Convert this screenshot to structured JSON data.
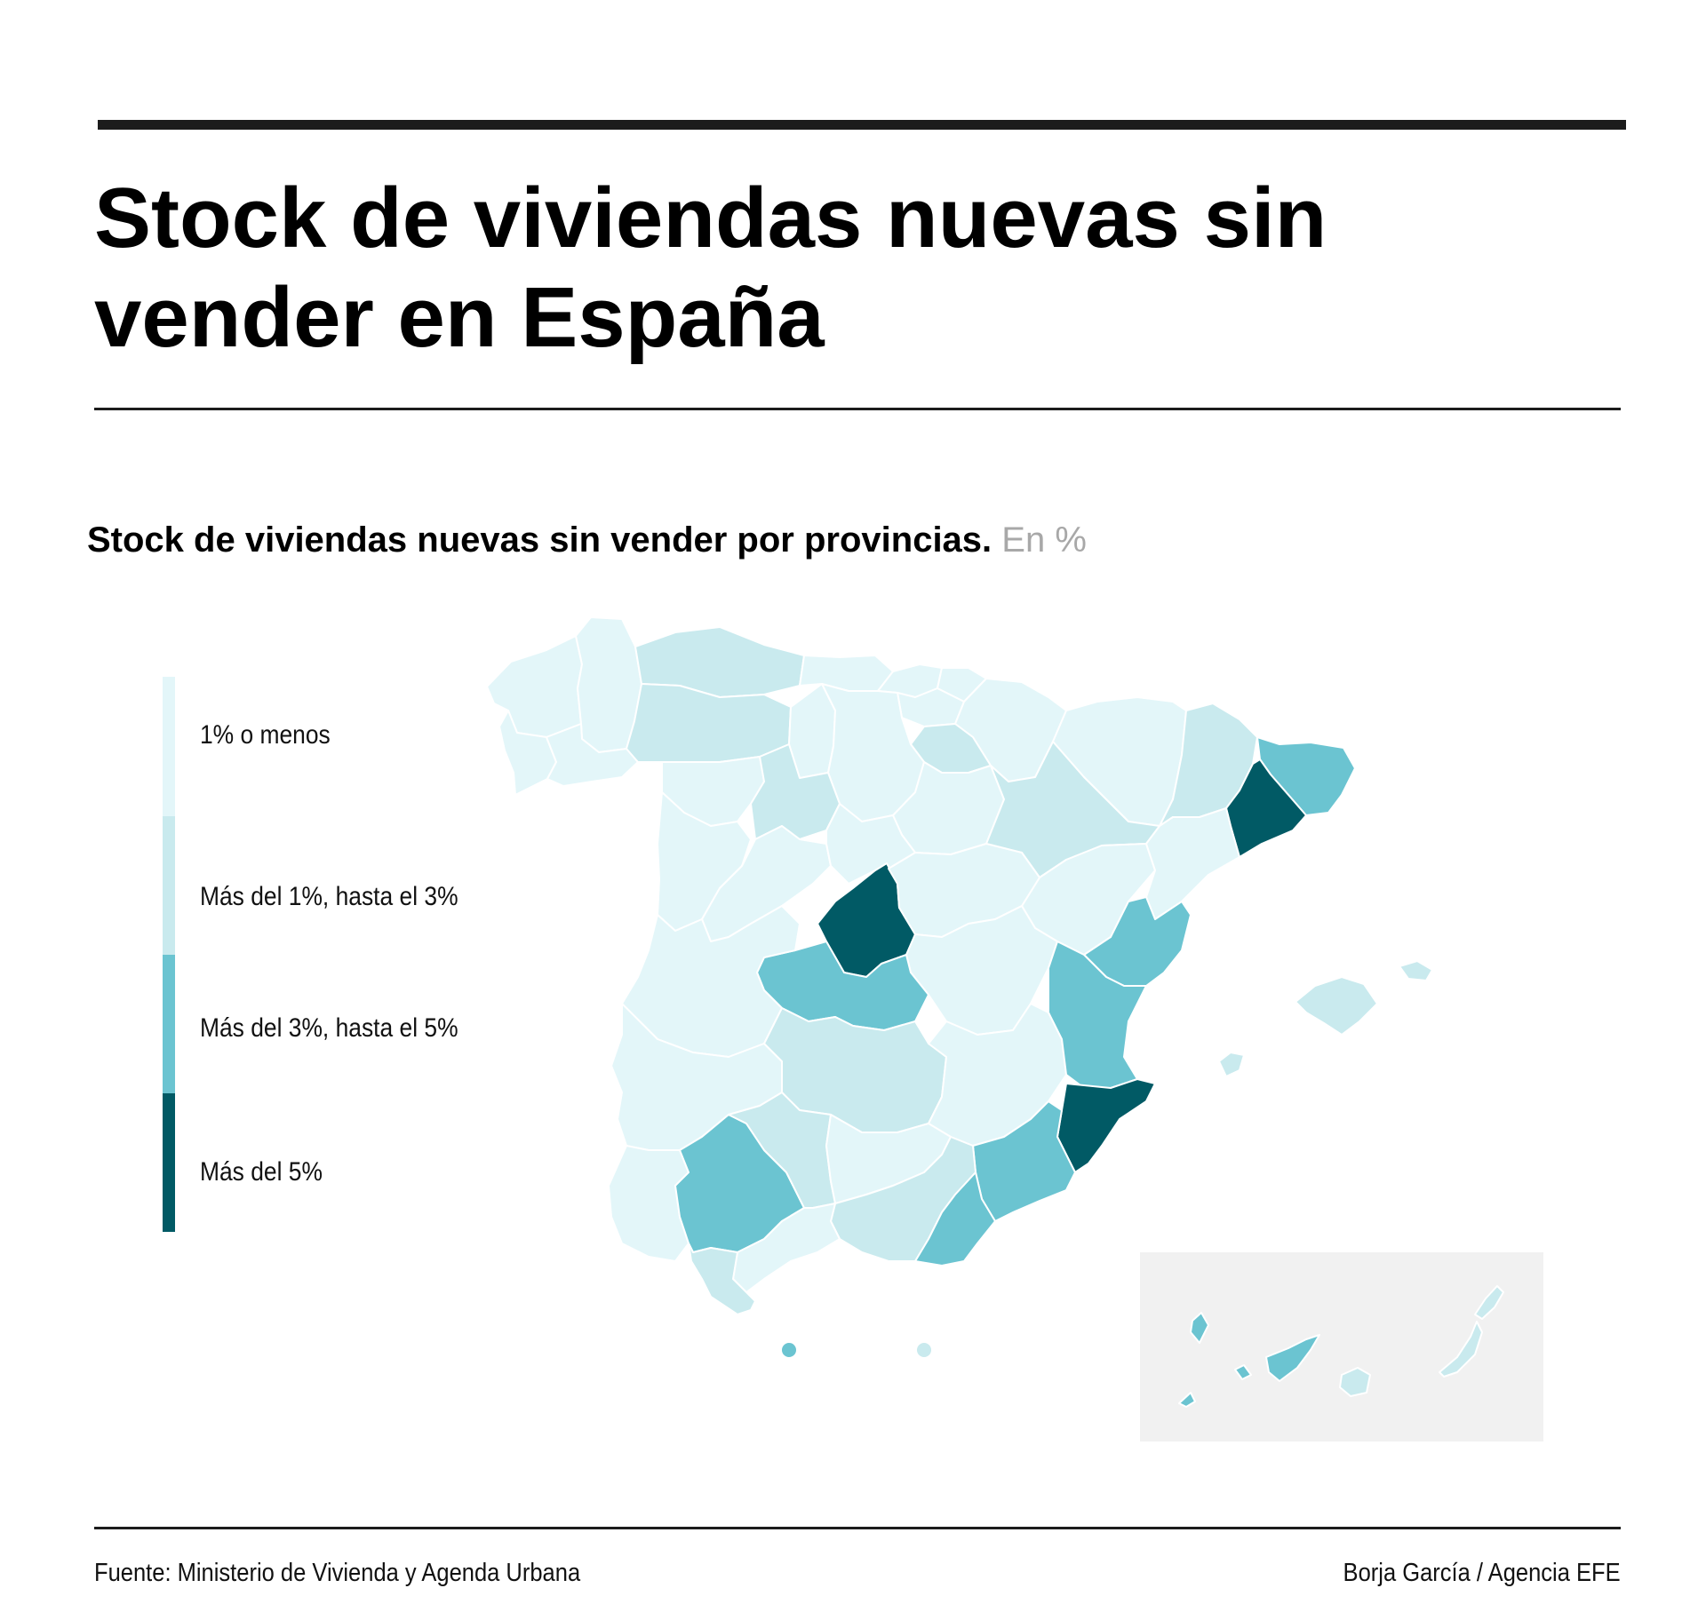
{
  "header": {
    "title": "Stock de viviendas nuevas sin vender en España"
  },
  "map": {
    "subtitle": "Stock de viviendas nuevas sin vender por provincias.",
    "unit": "En %",
    "colors": {
      "le1": "#e3f6f9",
      "1to3": "#c9eaee",
      "3to5": "#6bc4d1",
      "gt5": "#015a65",
      "canarias_inset_bg": "#f1f1f1",
      "border": "#ffffff"
    },
    "legend": [
      {
        "key": "le1",
        "label": "1% o menos"
      },
      {
        "key": "1to3",
        "label": "Más del 1%, hasta el 3%"
      },
      {
        "key": "3to5",
        "label": "Más del 3%, hasta el 5%"
      },
      {
        "key": "gt5",
        "label": "Más del 5%"
      }
    ],
    "regions": [
      {
        "name": "A Coruña",
        "cls": "le1"
      },
      {
        "name": "Lugo",
        "cls": "le1"
      },
      {
        "name": "Pontevedra",
        "cls": "le1"
      },
      {
        "name": "Ourense",
        "cls": "le1"
      },
      {
        "name": "Asturias",
        "cls": "1to3"
      },
      {
        "name": "Cantabria",
        "cls": "le1"
      },
      {
        "name": "Bizkaia",
        "cls": "le1"
      },
      {
        "name": "Gipuzkoa",
        "cls": "le1"
      },
      {
        "name": "Álava",
        "cls": "le1"
      },
      {
        "name": "Navarra",
        "cls": "le1"
      },
      {
        "name": "La Rioja",
        "cls": "1to3"
      },
      {
        "name": "León",
        "cls": "1to3"
      },
      {
        "name": "Palencia",
        "cls": "le1"
      },
      {
        "name": "Burgos",
        "cls": "le1"
      },
      {
        "name": "Zamora",
        "cls": "le1"
      },
      {
        "name": "Valladolid",
        "cls": "1to3"
      },
      {
        "name": "Soria",
        "cls": "le1"
      },
      {
        "name": "Salamanca",
        "cls": "le1"
      },
      {
        "name": "Ávila",
        "cls": "le1"
      },
      {
        "name": "Segovia",
        "cls": "le1"
      },
      {
        "name": "Huesca",
        "cls": "le1"
      },
      {
        "name": "Zaragoza",
        "cls": "1to3"
      },
      {
        "name": "Teruel",
        "cls": "le1"
      },
      {
        "name": "Lleida",
        "cls": "1to3"
      },
      {
        "name": "Girona",
        "cls": "3to5"
      },
      {
        "name": "Barcelona",
        "cls": "gt5"
      },
      {
        "name": "Tarragona",
        "cls": "le1"
      },
      {
        "name": "Madrid",
        "cls": "gt5"
      },
      {
        "name": "Guadalajara",
        "cls": "le1"
      },
      {
        "name": "Cuenca",
        "cls": "le1"
      },
      {
        "name": "Toledo",
        "cls": "3to5"
      },
      {
        "name": "Cáceres",
        "cls": "le1"
      },
      {
        "name": "Badajoz",
        "cls": "le1"
      },
      {
        "name": "Ciudad Real",
        "cls": "1to3"
      },
      {
        "name": "Albacete",
        "cls": "le1"
      },
      {
        "name": "Castellón",
        "cls": "3to5"
      },
      {
        "name": "Valencia",
        "cls": "3to5"
      },
      {
        "name": "Alicante",
        "cls": "gt5"
      },
      {
        "name": "Murcia",
        "cls": "3to5"
      },
      {
        "name": "Huelva",
        "cls": "le1"
      },
      {
        "name": "Sevilla",
        "cls": "3to5"
      },
      {
        "name": "Córdoba",
        "cls": "1to3"
      },
      {
        "name": "Jaén",
        "cls": "le1"
      },
      {
        "name": "Granada",
        "cls": "1to3"
      },
      {
        "name": "Almería",
        "cls": "3to5"
      },
      {
        "name": "Málaga",
        "cls": "le1"
      },
      {
        "name": "Cádiz",
        "cls": "1to3"
      },
      {
        "name": "Mallorca",
        "cls": "1to3"
      },
      {
        "name": "Menorca",
        "cls": "1to3"
      },
      {
        "name": "Ibiza",
        "cls": "1to3"
      },
      {
        "name": "Ceuta",
        "cls": "3to5"
      },
      {
        "name": "Melilla",
        "cls": "1to3"
      },
      {
        "name": "La Palma",
        "cls": "3to5"
      },
      {
        "name": "El Hierro",
        "cls": "3to5"
      },
      {
        "name": "La Gomera",
        "cls": "3to5"
      },
      {
        "name": "Tenerife",
        "cls": "3to5"
      },
      {
        "name": "Gran Canaria",
        "cls": "1to3"
      },
      {
        "name": "Fuerteventura",
        "cls": "1to3"
      },
      {
        "name": "Lanzarote",
        "cls": "1to3"
      }
    ]
  },
  "footer": {
    "source": "Fuente: Ministerio de Vivienda y Agenda Urbana",
    "credit": "Borja García / Agencia EFE"
  }
}
